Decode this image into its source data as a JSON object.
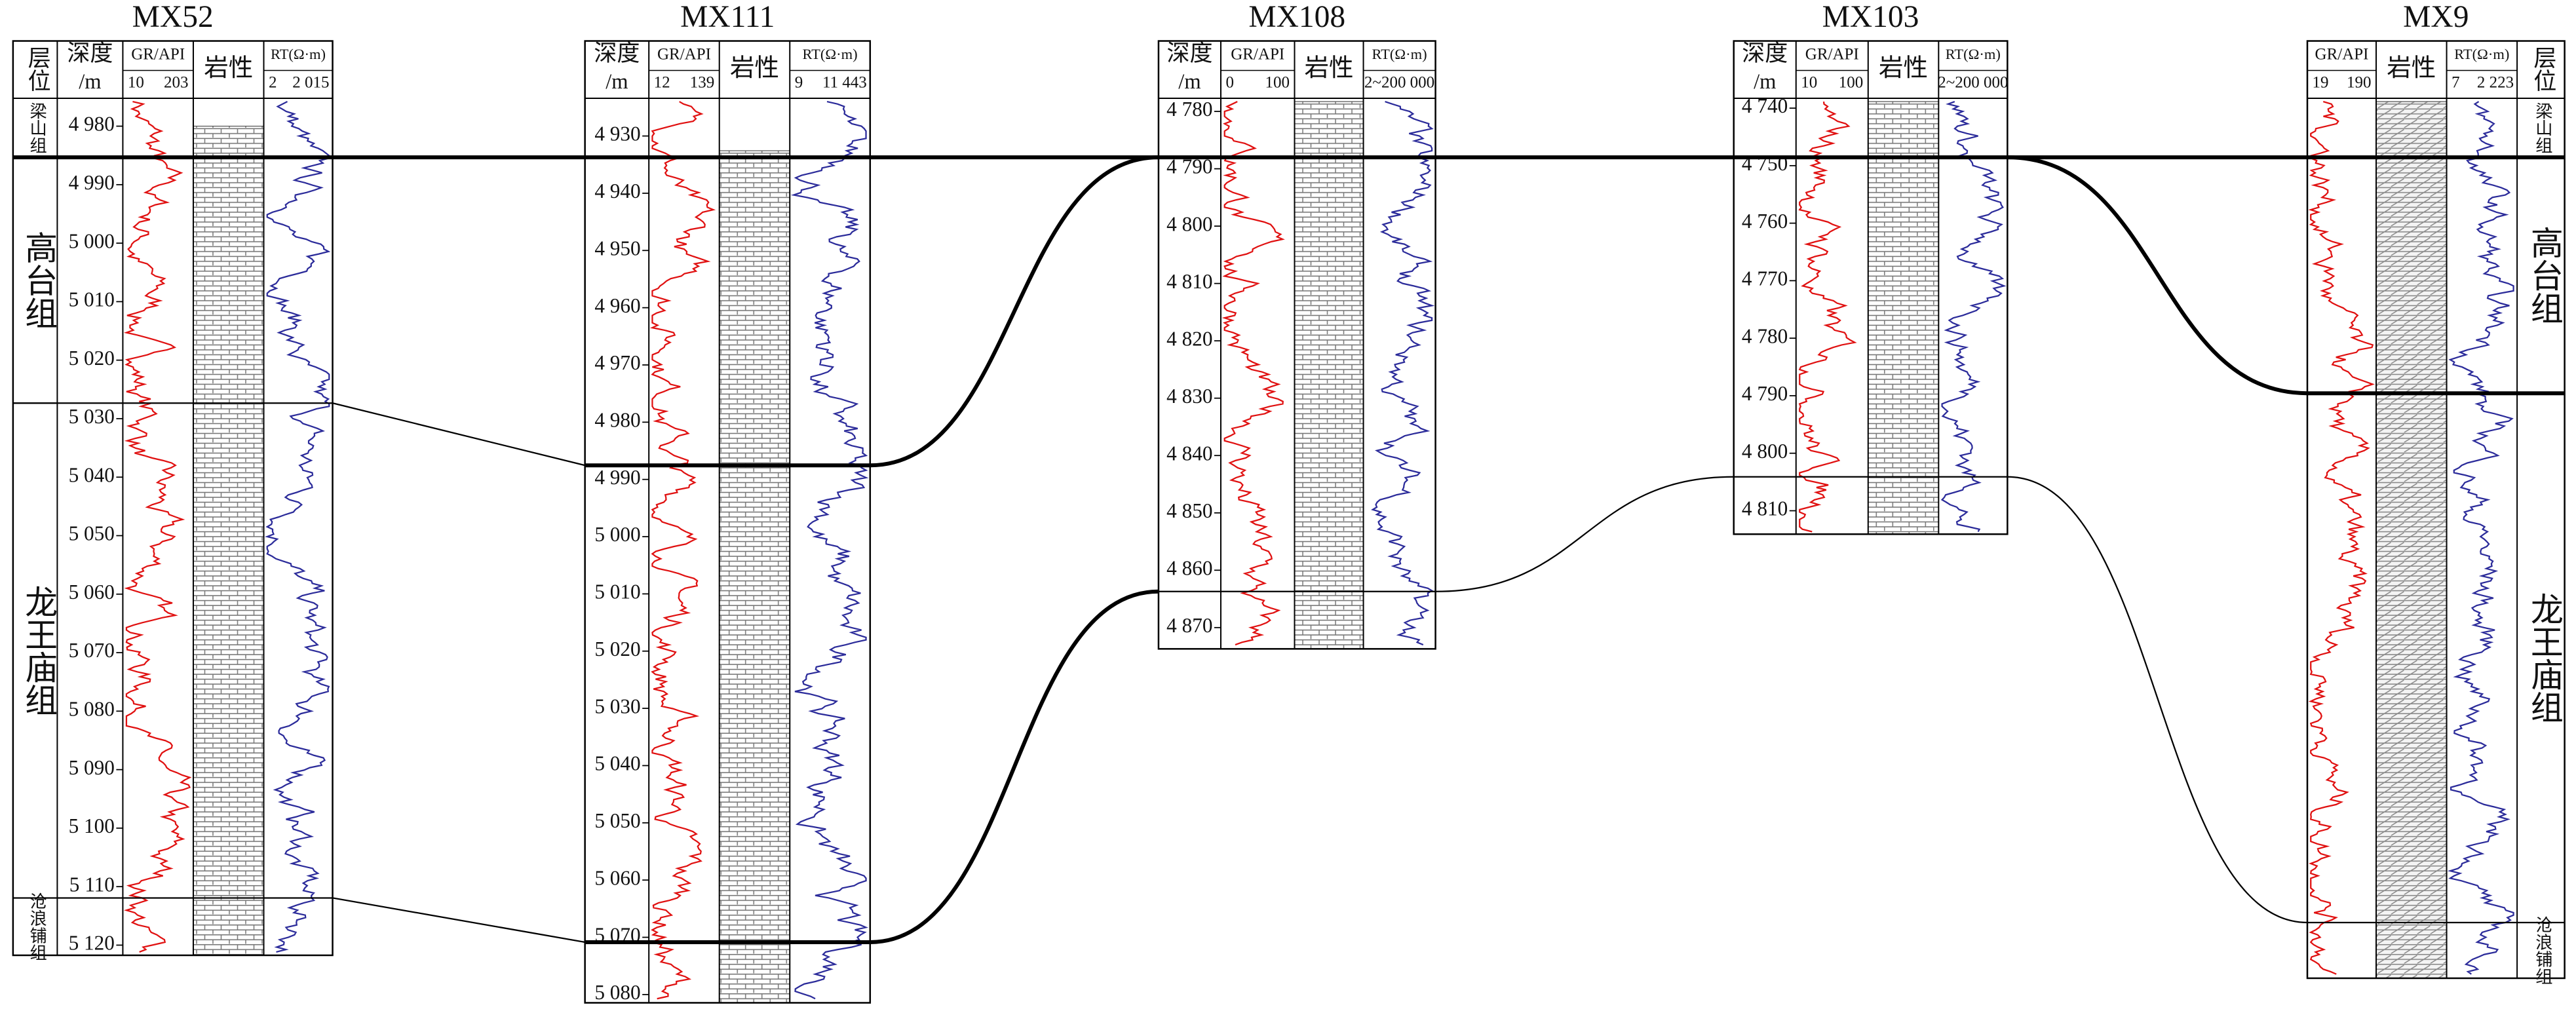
{
  "wells": [
    {
      "name": "MX52",
      "layer_header": "层位",
      "depth_header": [
        "深度",
        "/m"
      ],
      "gr_header": "GR/API",
      "gr_scale": [
        "10",
        "203"
      ],
      "lith_header": "岩性",
      "rt_header": "RT(Ω·m)",
      "rt_scale": [
        "2",
        "2 015"
      ],
      "depth_ticks": [
        "4 980",
        "4 990",
        "5 000",
        "5 010",
        "5 020",
        "5 030",
        "5 040",
        "5 050",
        "5 060",
        "5 070",
        "5 080",
        "5 090",
        "5 100",
        "5 110",
        "5 120"
      ],
      "formations": [
        "梁山组",
        "高台组",
        "龙王庙组",
        "沧浪铺组"
      ]
    },
    {
      "name": "MX111",
      "depth_header": [
        "深度",
        "/m"
      ],
      "gr_header": "GR/API",
      "gr_scale": [
        "12",
        "139"
      ],
      "lith_header": "岩性",
      "rt_header": "RT(Ω·m)",
      "rt_scale": [
        "9",
        "11 443"
      ],
      "depth_ticks": [
        "4 930",
        "4 940",
        "4 950",
        "4 960",
        "4 970",
        "4 980",
        "4 990",
        "5 000",
        "5 010",
        "5 020",
        "5 030",
        "5 040",
        "5 050",
        "5 060",
        "5 070",
        "5 080"
      ]
    },
    {
      "name": "MX108",
      "depth_header": [
        "深度",
        "/m"
      ],
      "gr_header": "GR/API",
      "gr_scale": [
        "0",
        "100"
      ],
      "lith_header": "岩性",
      "rt_header": "RT(Ω·m)",
      "rt_scale": [
        "2~200 000"
      ],
      "depth_ticks": [
        "4 780",
        "4 790",
        "4 800",
        "4 810",
        "4 820",
        "4 830",
        "4 840",
        "4 850",
        "4 860",
        "4 870"
      ]
    },
    {
      "name": "MX103",
      "depth_header": [
        "深度",
        "/m"
      ],
      "gr_header": "GR/API",
      "gr_scale": [
        "10",
        "100"
      ],
      "lith_header": "岩性",
      "rt_header": "RT(Ω·m)",
      "rt_scale": [
        "2~200 000"
      ],
      "depth_ticks": [
        "4 740",
        "4 750",
        "4 760",
        "4 770",
        "4 780",
        "4 790",
        "4 800",
        "4 810"
      ]
    },
    {
      "name": "MX9",
      "layer_header": "层位",
      "gr_header": "GR/API",
      "gr_scale": [
        "19",
        "190"
      ],
      "lith_header": "岩性",
      "rt_header": "RT(Ω·m)",
      "rt_scale": [
        "7",
        "2 223"
      ],
      "formations": [
        "梁山组",
        "高台组",
        "龙王庙组",
        "沧浪铺组"
      ]
    }
  ]
}
